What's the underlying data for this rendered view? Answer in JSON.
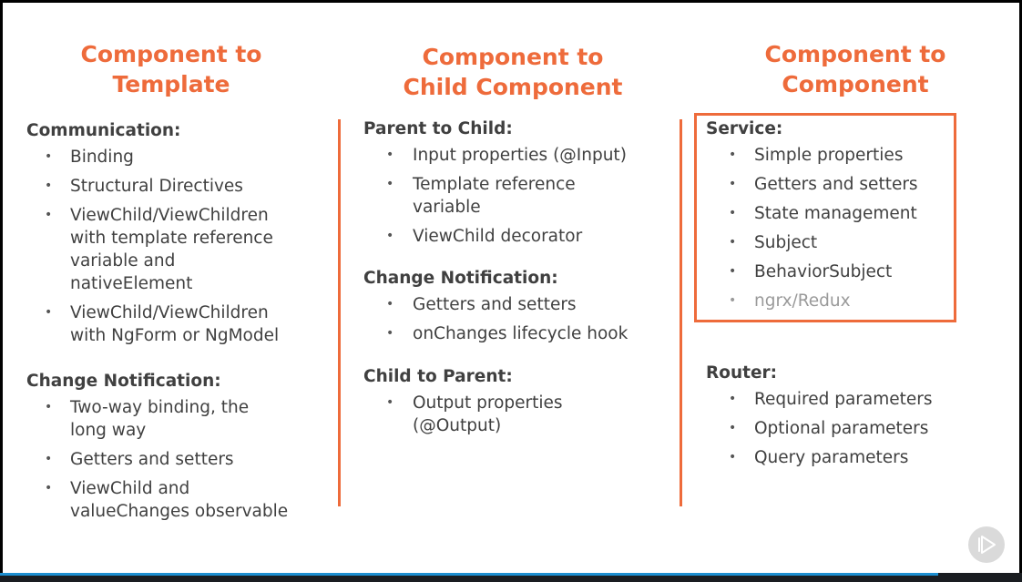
{
  "colors": {
    "accent": "#ee6b3b",
    "text": "#404040",
    "muted": "#9a9a9a",
    "progress": "#1d8fd1"
  },
  "columns": [
    {
      "title": "Component to\nTemplate",
      "sections": [
        {
          "heading": "Communication:",
          "items": [
            "Binding",
            "Structural Directives",
            "ViewChild/ViewChildren\nwith template reference\nvariable and\nnativeElement",
            "ViewChild/ViewChildren\nwith NgForm or NgModel"
          ]
        },
        {
          "heading": "Change Notification:",
          "items": [
            "Two-way binding, the\nlong way",
            "Getters and setters",
            "ViewChild and\nvalueChanges observable"
          ]
        }
      ]
    },
    {
      "title": "Component to\nChild Component",
      "sections": [
        {
          "heading": "Parent to Child:",
          "items": [
            "Input properties (@Input)",
            "Template reference\nvariable",
            "ViewChild decorator"
          ]
        },
        {
          "heading": "Change Notification:",
          "items": [
            "Getters and setters",
            "onChanges lifecycle hook"
          ]
        },
        {
          "heading": "Child to Parent:",
          "items": [
            "Output properties\n(@Output)"
          ]
        }
      ]
    },
    {
      "title": "Component to\nComponent",
      "sections": [
        {
          "heading": "Service:",
          "items": [
            "Simple properties",
            "Getters and setters",
            "State management",
            "Subject",
            "BehaviorSubject",
            "ngrx/Redux"
          ]
        },
        {
          "heading": "Router:",
          "items": [
            "Required parameters",
            "Optional parameters",
            "Query parameters"
          ]
        }
      ]
    }
  ],
  "bullet": "•",
  "player": {
    "icon": "play-icon"
  }
}
